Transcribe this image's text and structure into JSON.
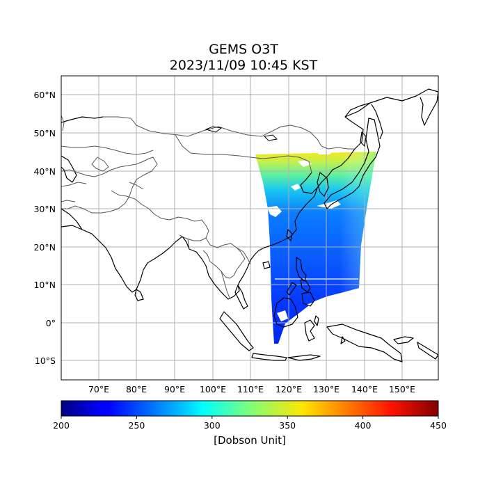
{
  "title_line1": "GEMS O3T",
  "title_line2": "2023/11/09 10:45 KST",
  "map": {
    "lon_range": [
      61,
      160
    ],
    "lat_range": [
      -15,
      65
    ],
    "lon_ticks": [
      70,
      80,
      90,
      100,
      110,
      120,
      130,
      140,
      150
    ],
    "lon_tick_labels": [
      "70°E",
      "80°E",
      "90°E",
      "100°E",
      "110°E",
      "120°E",
      "130°E",
      "140°E",
      "150°E"
    ],
    "lat_ticks": [
      60,
      50,
      40,
      30,
      20,
      10,
      0,
      -10
    ],
    "lat_tick_labels": [
      "60°N",
      "50°N",
      "40°N",
      "30°N",
      "20°N",
      "10°N",
      "0°",
      "10°S"
    ],
    "grid": true
  },
  "colorbar": {
    "min": 200,
    "max": 450,
    "ticks": [
      200,
      250,
      300,
      350,
      400,
      450
    ],
    "tick_labels": [
      "200",
      "250",
      "300",
      "350",
      "400",
      "450"
    ],
    "label": "[Dobson Unit]",
    "colormap": "jet"
  }
}
